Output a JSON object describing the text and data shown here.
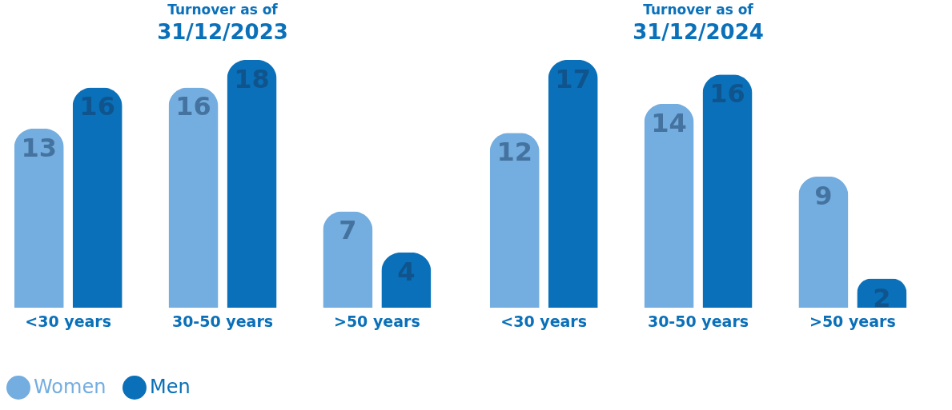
{
  "chart_data": [
    {
      "type": "bar",
      "title": "Turnover as of",
      "subtitle": "31/12/2023",
      "categories": [
        "<30 years",
        "30-50 years",
        ">50 years"
      ],
      "series": [
        {
          "name": "Women",
          "color": "#74addf",
          "values": [
            13,
            16,
            7
          ]
        },
        {
          "name": "Men",
          "color": "#0a70b9",
          "values": [
            16,
            18,
            4
          ]
        }
      ],
      "data_labels": true,
      "legend": "bottom left"
    },
    {
      "type": "bar",
      "title": "Turnover as of",
      "subtitle": "31/12/2024",
      "categories": [
        "<30 years",
        "30-50 years",
        ">50 years"
      ],
      "series": [
        {
          "color": "#74addf",
          "values": [
            12,
            14,
            9
          ]
        },
        {
          "color": "#0a70b9",
          "values": [
            17,
            16,
            2
          ]
        }
      ],
      "data_labels": true
    }
  ]
}
